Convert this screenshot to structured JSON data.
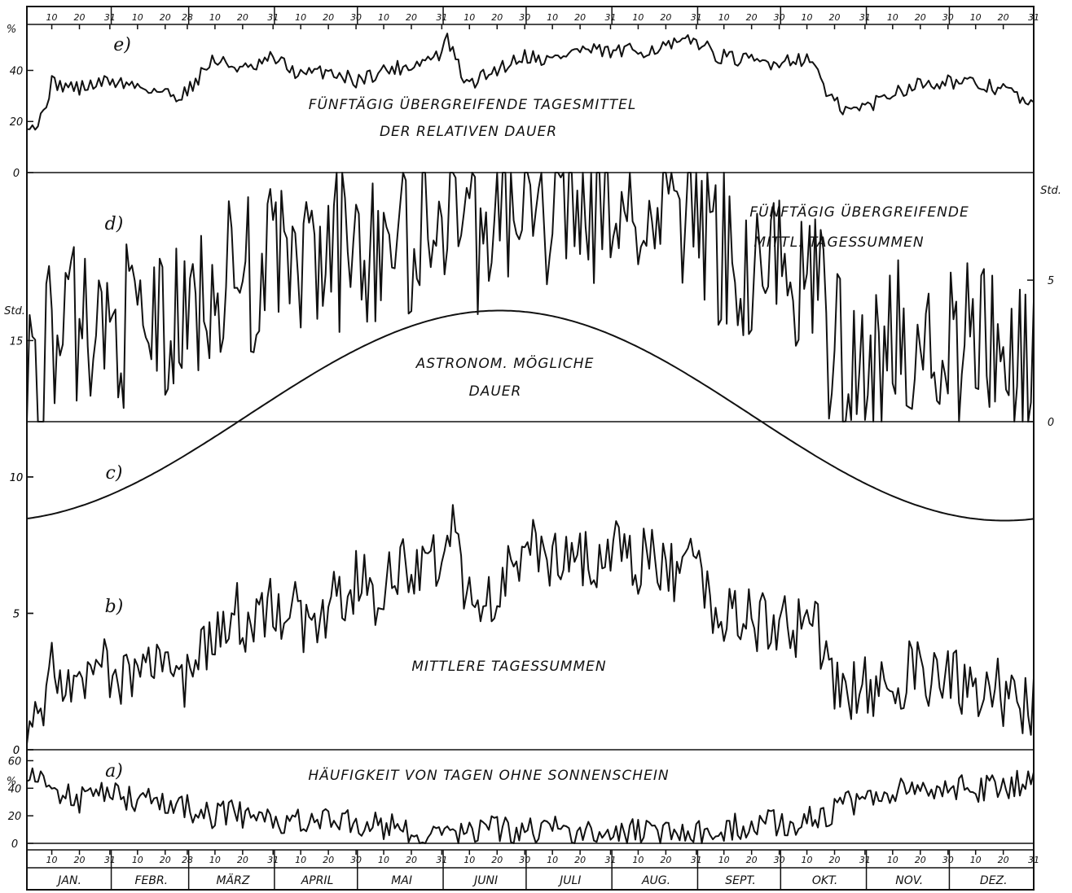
{
  "months": [
    {
      "label": "JAN.",
      "days": 31,
      "ticks": [
        "10",
        "20",
        "31"
      ]
    },
    {
      "label": "FEBR.",
      "days": 28,
      "ticks": [
        "10",
        "20",
        "28"
      ]
    },
    {
      "label": "MÄRZ",
      "days": 31,
      "ticks": [
        "10",
        "20",
        "31"
      ]
    },
    {
      "label": "APRIL",
      "days": 30,
      "ticks": [
        "10",
        "20",
        "30"
      ]
    },
    {
      "label": "MAI",
      "days": 31,
      "ticks": [
        "10",
        "20",
        "31"
      ]
    },
    {
      "label": "JUNI",
      "days": 30,
      "ticks": [
        "10",
        "20",
        "30"
      ]
    },
    {
      "label": "JULI",
      "days": 31,
      "ticks": [
        "10",
        "20",
        "31"
      ]
    },
    {
      "label": "AUG.",
      "days": 31,
      "ticks": [
        "10",
        "20",
        "31"
      ]
    },
    {
      "label": "SEPT.",
      "days": 30,
      "ticks": [
        "10",
        "20",
        "30"
      ]
    },
    {
      "label": "OKT.",
      "days": 31,
      "ticks": [
        "10",
        "20",
        "31"
      ]
    },
    {
      "label": "NOV.",
      "days": 30,
      "ticks": [
        "10",
        "20",
        "30"
      ]
    },
    {
      "label": "DEZ.",
      "days": 31,
      "ticks": [
        "10",
        "20",
        "31"
      ]
    }
  ],
  "chart_data": [
    {
      "id": "e",
      "panel_label": "e)",
      "type": "line",
      "title": "FÜNFTÄGIG ÜBERGREIFENDE TAGESMITTEL",
      "subtitle": "DER RELATIVEN DAUER",
      "ylabel": "%",
      "ylim": [
        0,
        58
      ],
      "yticks": [
        {
          "value": 0,
          "label": "0"
        },
        {
          "value": 20,
          "label": "20"
        },
        {
          "value": 40,
          "label": "40"
        }
      ],
      "x_unit": "day_of_year",
      "smoothness": 3,
      "points": [
        [
          1,
          20
        ],
        [
          5,
          18
        ],
        [
          10,
          35
        ],
        [
          20,
          33
        ],
        [
          31,
          36
        ],
        [
          45,
          33
        ],
        [
          55,
          30
        ],
        [
          59,
          32
        ],
        [
          68,
          44
        ],
        [
          75,
          42
        ],
        [
          82,
          40
        ],
        [
          90,
          45
        ],
        [
          100,
          38
        ],
        [
          110,
          40
        ],
        [
          120,
          36
        ],
        [
          130,
          40
        ],
        [
          140,
          42
        ],
        [
          150,
          46
        ],
        [
          153,
          52
        ],
        [
          160,
          34
        ],
        [
          170,
          40
        ],
        [
          181,
          46
        ],
        [
          190,
          44
        ],
        [
          200,
          48
        ],
        [
          212,
          47
        ],
        [
          225,
          48
        ],
        [
          236,
          50
        ],
        [
          243,
          52
        ],
        [
          250,
          46
        ],
        [
          259,
          44
        ],
        [
          270,
          43
        ],
        [
          280,
          45
        ],
        [
          287,
          42
        ],
        [
          290,
          30
        ],
        [
          297,
          24
        ],
        [
          305,
          26
        ],
        [
          315,
          32
        ],
        [
          325,
          35
        ],
        [
          334,
          36
        ],
        [
          345,
          34
        ],
        [
          355,
          33
        ],
        [
          365,
          25
        ]
      ]
    },
    {
      "id": "d",
      "panel_label": "d)",
      "type": "line",
      "title": "FÜNFTÄGIG ÜBERGREIFENDE",
      "subtitle": "MITTL. TAGESSUMMEN",
      "ylabel": "Std.",
      "ylim": [
        0,
        8.8
      ],
      "yticks": [
        {
          "value": 0,
          "label": "0"
        },
        {
          "value": 5,
          "label": "5"
        }
      ],
      "x_unit": "day_of_year",
      "smoothness": 3,
      "points": [
        [
          1,
          1.8
        ],
        [
          5,
          1.6
        ],
        [
          10,
          3.1
        ],
        [
          20,
          3.3
        ],
        [
          31,
          3.4
        ],
        [
          45,
          3.4
        ],
        [
          55,
          3.2
        ],
        [
          59,
          3.3
        ],
        [
          65,
          4.8
        ],
        [
          75,
          5
        ],
        [
          82,
          5.2
        ],
        [
          90,
          5.7
        ],
        [
          100,
          5.3
        ],
        [
          110,
          5.8
        ],
        [
          120,
          6.5
        ],
        [
          128,
          6.2
        ],
        [
          135,
          7.3
        ],
        [
          140,
          5.5
        ],
        [
          145,
          7.5
        ],
        [
          150,
          7.6
        ],
        [
          155,
          8.8
        ],
        [
          160,
          6.5
        ],
        [
          170,
          7
        ],
        [
          181,
          8.2
        ],
        [
          190,
          7.7
        ],
        [
          200,
          7.8
        ],
        [
          212,
          7.6
        ],
        [
          225,
          7.3
        ],
        [
          236,
          7.3
        ],
        [
          243,
          7.5
        ],
        [
          250,
          6
        ],
        [
          259,
          5.7
        ],
        [
          270,
          5.5
        ],
        [
          280,
          5.2
        ],
        [
          287,
          4.5
        ],
        [
          290,
          3
        ],
        [
          297,
          2.5
        ],
        [
          305,
          2.6
        ],
        [
          315,
          2.8
        ],
        [
          325,
          2.9
        ],
        [
          334,
          2.8
        ],
        [
          345,
          2.6
        ],
        [
          355,
          2.5
        ],
        [
          365,
          1.8
        ]
      ]
    },
    {
      "id": "c",
      "panel_label": "c)",
      "type": "line",
      "title": "ASTRONOM. MÖGLICHE",
      "subtitle": "DAUER",
      "ylabel": "Std.",
      "ylim": [
        0,
        17.1
      ],
      "yticks": [
        {
          "value": 0,
          "label": "0"
        },
        {
          "value": 5,
          "label": "5"
        },
        {
          "value": 10,
          "label": "10"
        },
        {
          "value": 15,
          "label": "15"
        }
      ],
      "x_unit": "day_of_year",
      "series": [
        {
          "min_hours": 8.4,
          "max_hours": 16.1,
          "peak_day": 172
        }
      ]
    },
    {
      "id": "b",
      "panel_label": "b)",
      "type": "line",
      "title": "MITTLERE TAGESSUMMEN",
      "ylabel": "Std.",
      "ylim": [
        0,
        17.1
      ],
      "yticks": [
        {
          "value": 0,
          "label": "0"
        },
        {
          "value": 5,
          "label": "5"
        },
        {
          "value": 10,
          "label": "10"
        }
      ],
      "x_unit": "day_of_year",
      "smoothness": 1.3,
      "points": [
        [
          1,
          1.5
        ],
        [
          5,
          1.2
        ],
        [
          10,
          2.7
        ],
        [
          20,
          2.8
        ],
        [
          31,
          2.9
        ],
        [
          45,
          3.0
        ],
        [
          55,
          2.6
        ],
        [
          59,
          2.8
        ],
        [
          65,
          4.0
        ],
        [
          75,
          4.8
        ],
        [
          82,
          4.9
        ],
        [
          90,
          5.5
        ],
        [
          100,
          4.8
        ],
        [
          110,
          5.2
        ],
        [
          120,
          6.0
        ],
        [
          130,
          5.8
        ],
        [
          140,
          7.0
        ],
        [
          150,
          6.8
        ],
        [
          155,
          8.2
        ],
        [
          160,
          5.5
        ],
        [
          170,
          5.8
        ],
        [
          181,
          7.3
        ],
        [
          190,
          6.8
        ],
        [
          200,
          7.0
        ],
        [
          212,
          7.2
        ],
        [
          225,
          6.8
        ],
        [
          236,
          6.7
        ],
        [
          243,
          6.9
        ],
        [
          250,
          5.3
        ],
        [
          259,
          5.1
        ],
        [
          270,
          4.7
        ],
        [
          280,
          4.6
        ],
        [
          287,
          4.2
        ],
        [
          290,
          2.8
        ],
        [
          297,
          2.1
        ],
        [
          305,
          2.2
        ],
        [
          315,
          2.6
        ],
        [
          325,
          2.8
        ],
        [
          334,
          2.6
        ],
        [
          345,
          2.3
        ],
        [
          355,
          2.1
        ],
        [
          365,
          1.7
        ]
      ]
    },
    {
      "id": "a",
      "panel_label": "a)",
      "type": "line",
      "title": "HÄUFIGKEIT VON TAGEN OHNE SONNENSCHEIN",
      "ylabel": "%",
      "ylim": [
        0,
        65
      ],
      "yticks": [
        {
          "value": 0,
          "label": "0"
        },
        {
          "value": 20,
          "label": "20"
        },
        {
          "value": 40,
          "label": "40"
        },
        {
          "value": 60,
          "label": "60"
        }
      ],
      "x_unit": "day_of_year",
      "smoothness": 10,
      "points": [
        [
          1,
          55
        ],
        [
          5,
          50
        ],
        [
          10,
          37
        ],
        [
          20,
          32
        ],
        [
          31,
          35
        ],
        [
          45,
          30
        ],
        [
          55,
          28
        ],
        [
          59,
          26
        ],
        [
          65,
          20
        ],
        [
          75,
          22
        ],
        [
          82,
          18
        ],
        [
          90,
          15
        ],
        [
          100,
          18
        ],
        [
          110,
          16
        ],
        [
          120,
          15
        ],
        [
          130,
          12
        ],
        [
          140,
          10
        ],
        [
          150,
          8
        ],
        [
          155,
          5
        ],
        [
          160,
          8
        ],
        [
          170,
          10
        ],
        [
          181,
          9
        ],
        [
          190,
          10
        ],
        [
          200,
          8
        ],
        [
          212,
          7
        ],
        [
          225,
          8
        ],
        [
          236,
          6
        ],
        [
          243,
          6
        ],
        [
          250,
          10
        ],
        [
          259,
          13
        ],
        [
          270,
          15
        ],
        [
          280,
          16
        ],
        [
          287,
          18
        ],
        [
          290,
          20
        ],
        [
          297,
          28
        ],
        [
          305,
          35
        ],
        [
          315,
          38
        ],
        [
          325,
          40
        ],
        [
          334,
          42
        ],
        [
          345,
          40
        ],
        [
          355,
          42
        ],
        [
          365,
          45
        ]
      ]
    }
  ]
}
